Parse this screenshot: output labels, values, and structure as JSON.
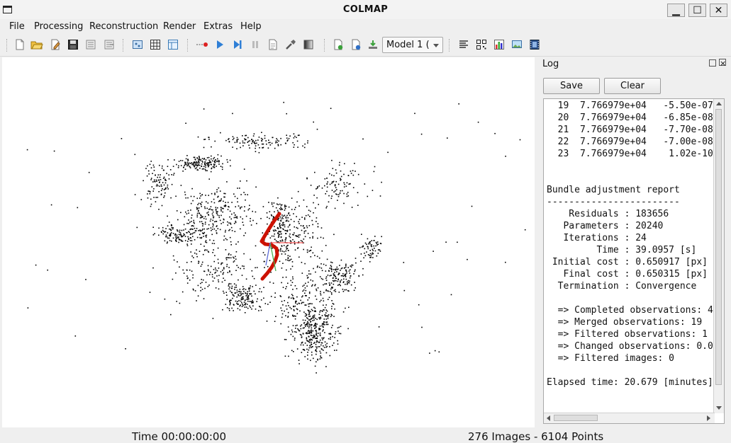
{
  "window": {
    "title": "COLMAP",
    "min_symbol": "▁",
    "max_symbol": "☐",
    "close_symbol": "✕"
  },
  "menu": [
    "File",
    "Processing",
    "Reconstruction",
    "Render",
    "Extras",
    "Help"
  ],
  "toolbar": {
    "icons": [
      "new-project-icon",
      "open-project-icon",
      "edit-project-icon",
      "save-project-icon",
      "import-model-icon",
      "export-model-icon",
      "feature-extraction-icon",
      "feature-matching-icon",
      "database-management-icon",
      "automatic-reconstruction-icon",
      "start-reconstruction-icon",
      "step-reconstruction-icon",
      "pause-reconstruction-icon",
      "reset-reconstruction-icon",
      "bundle-adjustment-icon",
      "dense-reconstruction-icon",
      "reconstruction-stats-icon",
      "match-matrix-icon",
      "log-icon",
      "render-options-icon",
      "grab-image-icon",
      "grab-movie-icon"
    ],
    "model_select": "Model 1 ("
  },
  "log": {
    "title": "Log",
    "save_label": "Save",
    "clear_label": "Clear",
    "lines": [
      "  19  7.766979e+04   -5.50e-07",
      "  20  7.766979e+04   -6.85e-08",
      "  21  7.766979e+04   -7.70e-08",
      "  22  7.766979e+04   -7.00e-08",
      "  23  7.766979e+04    1.02e-10",
      "",
      "",
      "Bundle adjustment report",
      "------------------------",
      "    Residuals : 183656",
      "   Parameters : 20240",
      "   Iterations : 24",
      "         Time : 39.0957 [s]",
      " Initial cost : 0.650917 [px]",
      "   Final cost : 0.650315 [px]",
      "  Termination : Convergence",
      "",
      "  => Completed observations: 4",
      "  => Merged observations: 19",
      "  => Filtered observations: 1",
      "  => Changed observations: 0.0",
      "  => Filtered images: 0",
      "",
      "Elapsed time: 20.679 [minutes]"
    ]
  },
  "status": {
    "time": "Time 00:00:00:00",
    "counts": "276 Images - 6104 Points"
  },
  "colors": {
    "camera_path": "#cc1100",
    "axis_x": "#ff5a5a",
    "axis_y": "#4caf50",
    "axis_z": "#5c6bd6",
    "points": "#000000"
  }
}
